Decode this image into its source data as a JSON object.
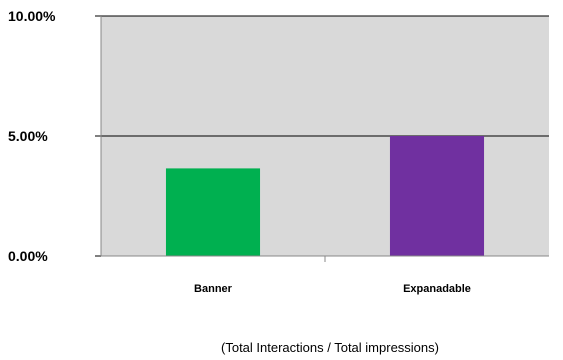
{
  "chart_data": {
    "type": "bar",
    "categories": [
      "Banner",
      "Expanadable"
    ],
    "values": [
      3.65,
      5.0
    ],
    "ylim": [
      0,
      10
    ],
    "y_ticks": [
      0,
      5,
      10
    ],
    "y_tick_labels": [
      "0.00%",
      "5.00%",
      "10.00%"
    ],
    "xlabel": "(Total Interactions / Total impressions)",
    "bar_colors": [
      "#00b050",
      "#7030a0"
    ],
    "plot_background": "#d9d9d9",
    "grid": true,
    "legend": "none"
  }
}
